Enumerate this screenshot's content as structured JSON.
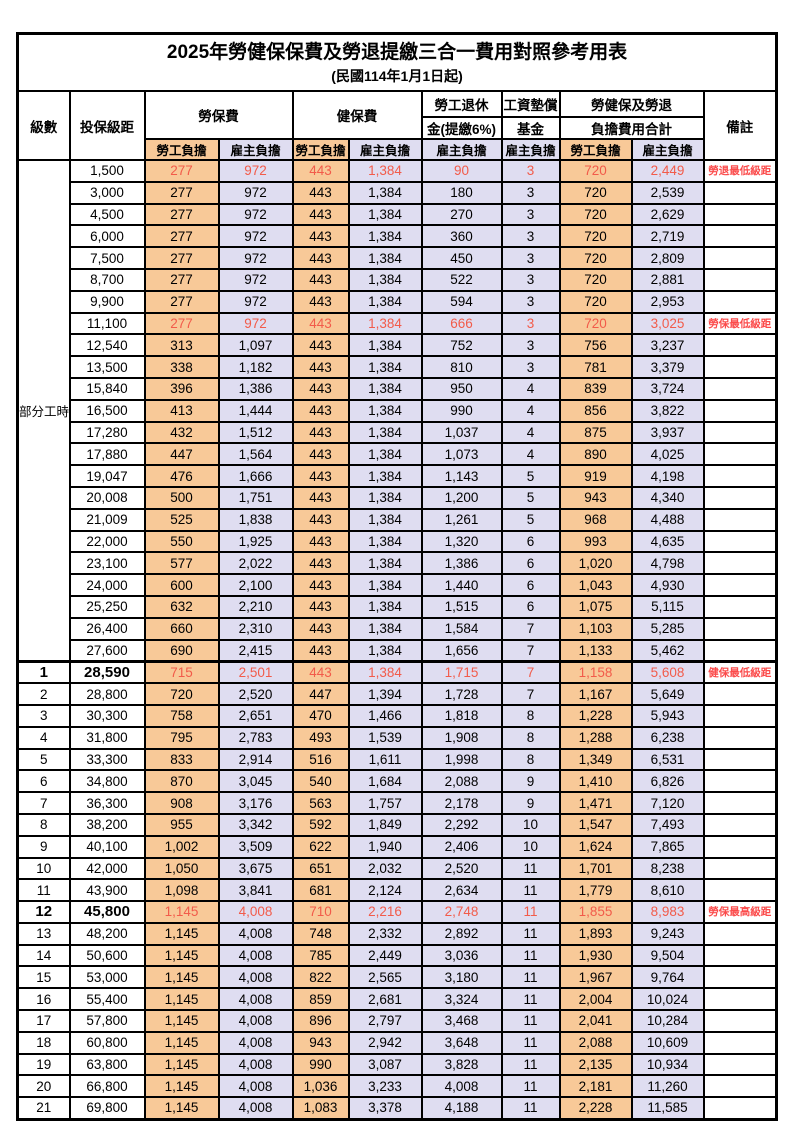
{
  "title": "2025年勞健保保費及勞退提繳三合一費用對照參考用表",
  "subtitle": "(民國114年1月1日起)",
  "colors": {
    "employee_bg": "#F8C998",
    "employer_bg": "#DFDDF1",
    "highlight_red": "#F25B4A",
    "remark_red": "#FB4B4B",
    "border": "#000000"
  },
  "header": {
    "level": "級數",
    "bracket": "投保級距",
    "labor": "勞保費",
    "health": "健保費",
    "pension_line1": "勞工退休",
    "pension_line2": "金(提繳6%)",
    "fund_line1": "工資墊償",
    "fund_line2": "基金",
    "total_line1": "勞健保及勞退",
    "total_line2": "負擔費用合計",
    "remark": "備註",
    "employee": "勞工負擔",
    "employer": "雇主負擔"
  },
  "part_time": {
    "label": "部分工時",
    "span": 23
  },
  "row_fields": [
    "level",
    "bracket",
    "labor_employee",
    "labor_employer",
    "health_employee",
    "health_employer",
    "pension_employer",
    "fund_employer",
    "total_employee",
    "total_employer",
    "remark",
    "red_flag"
  ],
  "rows": [
    [
      "",
      "1,500",
      "277",
      "972",
      "443",
      "1,384",
      "90",
      "3",
      "720",
      "2,449",
      "勞退最低級距",
      1
    ],
    [
      "",
      "3,000",
      "277",
      "972",
      "443",
      "1,384",
      "180",
      "3",
      "720",
      "2,539",
      "",
      0
    ],
    [
      "",
      "4,500",
      "277",
      "972",
      "443",
      "1,384",
      "270",
      "3",
      "720",
      "2,629",
      "",
      0
    ],
    [
      "",
      "6,000",
      "277",
      "972",
      "443",
      "1,384",
      "360",
      "3",
      "720",
      "2,719",
      "",
      0
    ],
    [
      "",
      "7,500",
      "277",
      "972",
      "443",
      "1,384",
      "450",
      "3",
      "720",
      "2,809",
      "",
      0
    ],
    [
      "",
      "8,700",
      "277",
      "972",
      "443",
      "1,384",
      "522",
      "3",
      "720",
      "2,881",
      "",
      0
    ],
    [
      "",
      "9,900",
      "277",
      "972",
      "443",
      "1,384",
      "594",
      "3",
      "720",
      "2,953",
      "",
      0
    ],
    [
      "",
      "11,100",
      "277",
      "972",
      "443",
      "1,384",
      "666",
      "3",
      "720",
      "3,025",
      "勞保最低級距",
      1
    ],
    [
      "",
      "12,540",
      "313",
      "1,097",
      "443",
      "1,384",
      "752",
      "3",
      "756",
      "3,237",
      "",
      0
    ],
    [
      "",
      "13,500",
      "338",
      "1,182",
      "443",
      "1,384",
      "810",
      "3",
      "781",
      "3,379",
      "",
      0
    ],
    [
      "",
      "15,840",
      "396",
      "1,386",
      "443",
      "1,384",
      "950",
      "4",
      "839",
      "3,724",
      "",
      0
    ],
    [
      "",
      "16,500",
      "413",
      "1,444",
      "443",
      "1,384",
      "990",
      "4",
      "856",
      "3,822",
      "",
      0
    ],
    [
      "",
      "17,280",
      "432",
      "1,512",
      "443",
      "1,384",
      "1,037",
      "4",
      "875",
      "3,937",
      "",
      0
    ],
    [
      "",
      "17,880",
      "447",
      "1,564",
      "443",
      "1,384",
      "1,073",
      "4",
      "890",
      "4,025",
      "",
      0
    ],
    [
      "",
      "19,047",
      "476",
      "1,666",
      "443",
      "1,384",
      "1,143",
      "5",
      "919",
      "4,198",
      "",
      0
    ],
    [
      "",
      "20,008",
      "500",
      "1,751",
      "443",
      "1,384",
      "1,200",
      "5",
      "943",
      "4,340",
      "",
      0
    ],
    [
      "",
      "21,009",
      "525",
      "1,838",
      "443",
      "1,384",
      "1,261",
      "5",
      "968",
      "4,488",
      "",
      0
    ],
    [
      "",
      "22,000",
      "550",
      "1,925",
      "443",
      "1,384",
      "1,320",
      "6",
      "993",
      "4,635",
      "",
      0
    ],
    [
      "",
      "23,100",
      "577",
      "2,022",
      "443",
      "1,384",
      "1,386",
      "6",
      "1,020",
      "4,798",
      "",
      0
    ],
    [
      "",
      "24,000",
      "600",
      "2,100",
      "443",
      "1,384",
      "1,440",
      "6",
      "1,043",
      "4,930",
      "",
      0
    ],
    [
      "",
      "25,250",
      "632",
      "2,210",
      "443",
      "1,384",
      "1,515",
      "6",
      "1,075",
      "5,115",
      "",
      0
    ],
    [
      "",
      "26,400",
      "660",
      "2,310",
      "443",
      "1,384",
      "1,584",
      "7",
      "1,103",
      "5,285",
      "",
      0
    ],
    [
      "",
      "27,600",
      "690",
      "2,415",
      "443",
      "1,384",
      "1,656",
      "7",
      "1,133",
      "5,462",
      "",
      0
    ],
    [
      "1",
      "28,590",
      "715",
      "2,501",
      "443",
      "1,384",
      "1,715",
      "7",
      "1,158",
      "5,608",
      "健保最低級距",
      2
    ],
    [
      "2",
      "28,800",
      "720",
      "2,520",
      "447",
      "1,394",
      "1,728",
      "7",
      "1,167",
      "5,649",
      "",
      0
    ],
    [
      "3",
      "30,300",
      "758",
      "2,651",
      "470",
      "1,466",
      "1,818",
      "8",
      "1,228",
      "5,943",
      "",
      0
    ],
    [
      "4",
      "31,800",
      "795",
      "2,783",
      "493",
      "1,539",
      "1,908",
      "8",
      "1,288",
      "6,238",
      "",
      0
    ],
    [
      "5",
      "33,300",
      "833",
      "2,914",
      "516",
      "1,611",
      "1,998",
      "8",
      "1,349",
      "6,531",
      "",
      0
    ],
    [
      "6",
      "34,800",
      "870",
      "3,045",
      "540",
      "1,684",
      "2,088",
      "9",
      "1,410",
      "6,826",
      "",
      0
    ],
    [
      "7",
      "36,300",
      "908",
      "3,176",
      "563",
      "1,757",
      "2,178",
      "9",
      "1,471",
      "7,120",
      "",
      0
    ],
    [
      "8",
      "38,200",
      "955",
      "3,342",
      "592",
      "1,849",
      "2,292",
      "10",
      "1,547",
      "7,493",
      "",
      0
    ],
    [
      "9",
      "40,100",
      "1,002",
      "3,509",
      "622",
      "1,940",
      "2,406",
      "10",
      "1,624",
      "7,865",
      "",
      0
    ],
    [
      "10",
      "42,000",
      "1,050",
      "3,675",
      "651",
      "2,032",
      "2,520",
      "11",
      "1,701",
      "8,238",
      "",
      0
    ],
    [
      "11",
      "43,900",
      "1,098",
      "3,841",
      "681",
      "2,124",
      "2,634",
      "11",
      "1,779",
      "8,610",
      "",
      0
    ],
    [
      "12",
      "45,800",
      "1,145",
      "4,008",
      "710",
      "2,216",
      "2,748",
      "11",
      "1,855",
      "8,983",
      "勞保最高級距",
      2
    ],
    [
      "13",
      "48,200",
      "1,145",
      "4,008",
      "748",
      "2,332",
      "2,892",
      "11",
      "1,893",
      "9,243",
      "",
      0
    ],
    [
      "14",
      "50,600",
      "1,145",
      "4,008",
      "785",
      "2,449",
      "3,036",
      "11",
      "1,930",
      "9,504",
      "",
      0
    ],
    [
      "15",
      "53,000",
      "1,145",
      "4,008",
      "822",
      "2,565",
      "3,180",
      "11",
      "1,967",
      "9,764",
      "",
      0
    ],
    [
      "16",
      "55,400",
      "1,145",
      "4,008",
      "859",
      "2,681",
      "3,324",
      "11",
      "2,004",
      "10,024",
      "",
      0
    ],
    [
      "17",
      "57,800",
      "1,145",
      "4,008",
      "896",
      "2,797",
      "3,468",
      "11",
      "2,041",
      "10,284",
      "",
      0
    ],
    [
      "18",
      "60,800",
      "1,145",
      "4,008",
      "943",
      "2,942",
      "3,648",
      "11",
      "2,088",
      "10,609",
      "",
      0
    ],
    [
      "19",
      "63,800",
      "1,145",
      "4,008",
      "990",
      "3,087",
      "3,828",
      "11",
      "2,135",
      "10,934",
      "",
      0
    ],
    [
      "20",
      "66,800",
      "1,145",
      "4,008",
      "1,036",
      "3,233",
      "4,008",
      "11",
      "2,181",
      "11,260",
      "",
      0
    ],
    [
      "21",
      "69,800",
      "1,145",
      "4,008",
      "1,083",
      "3,378",
      "4,188",
      "11",
      "2,228",
      "11,585",
      "",
      0
    ]
  ]
}
